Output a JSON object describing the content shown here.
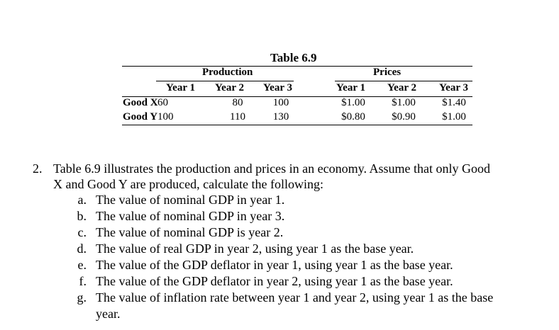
{
  "table": {
    "title": "Table 6.9",
    "production_header": "Production",
    "prices_header": "Prices",
    "year_headers": [
      "Year 1",
      "Year 2",
      "Year 3"
    ],
    "rows": [
      {
        "good_bold": "Good X",
        "production": [
          "60",
          "80",
          "100"
        ],
        "prices": [
          "$1.00",
          "$1.00",
          "$1.40"
        ]
      },
      {
        "good_bold": "Good Y",
        "production": [
          "100",
          "110",
          "130"
        ],
        "prices": [
          "$0.80",
          "$0.90",
          "$1.00"
        ]
      }
    ]
  },
  "question": {
    "number": "2.",
    "text_line1": "Table 6.9 illustrates the production and prices in an economy. Assume that only Good",
    "text_line2": "X and Good Y are produced, calculate the following:",
    "items": [
      {
        "letter": "a.",
        "text": "The value of nominal GDP in year 1."
      },
      {
        "letter": "b.",
        "text": "The value of nominal GDP in year 3."
      },
      {
        "letter": "c.",
        "text": "The value of nominal GDP is year 2."
      },
      {
        "letter": "d.",
        "text": "The value of real GDP in year 2, using year 1 as the base year."
      },
      {
        "letter": "e.",
        "text": "The value of the GDP deflator in year 1, using year 1 as the base year."
      },
      {
        "letter": "f.",
        "text": "The value of the GDP deflator in year 2, using year 1 as the base year."
      },
      {
        "letter": "g.",
        "text": "The value of inflation rate between year 1 and year 2, using year 1 as the base",
        "continuation": "year."
      }
    ]
  }
}
